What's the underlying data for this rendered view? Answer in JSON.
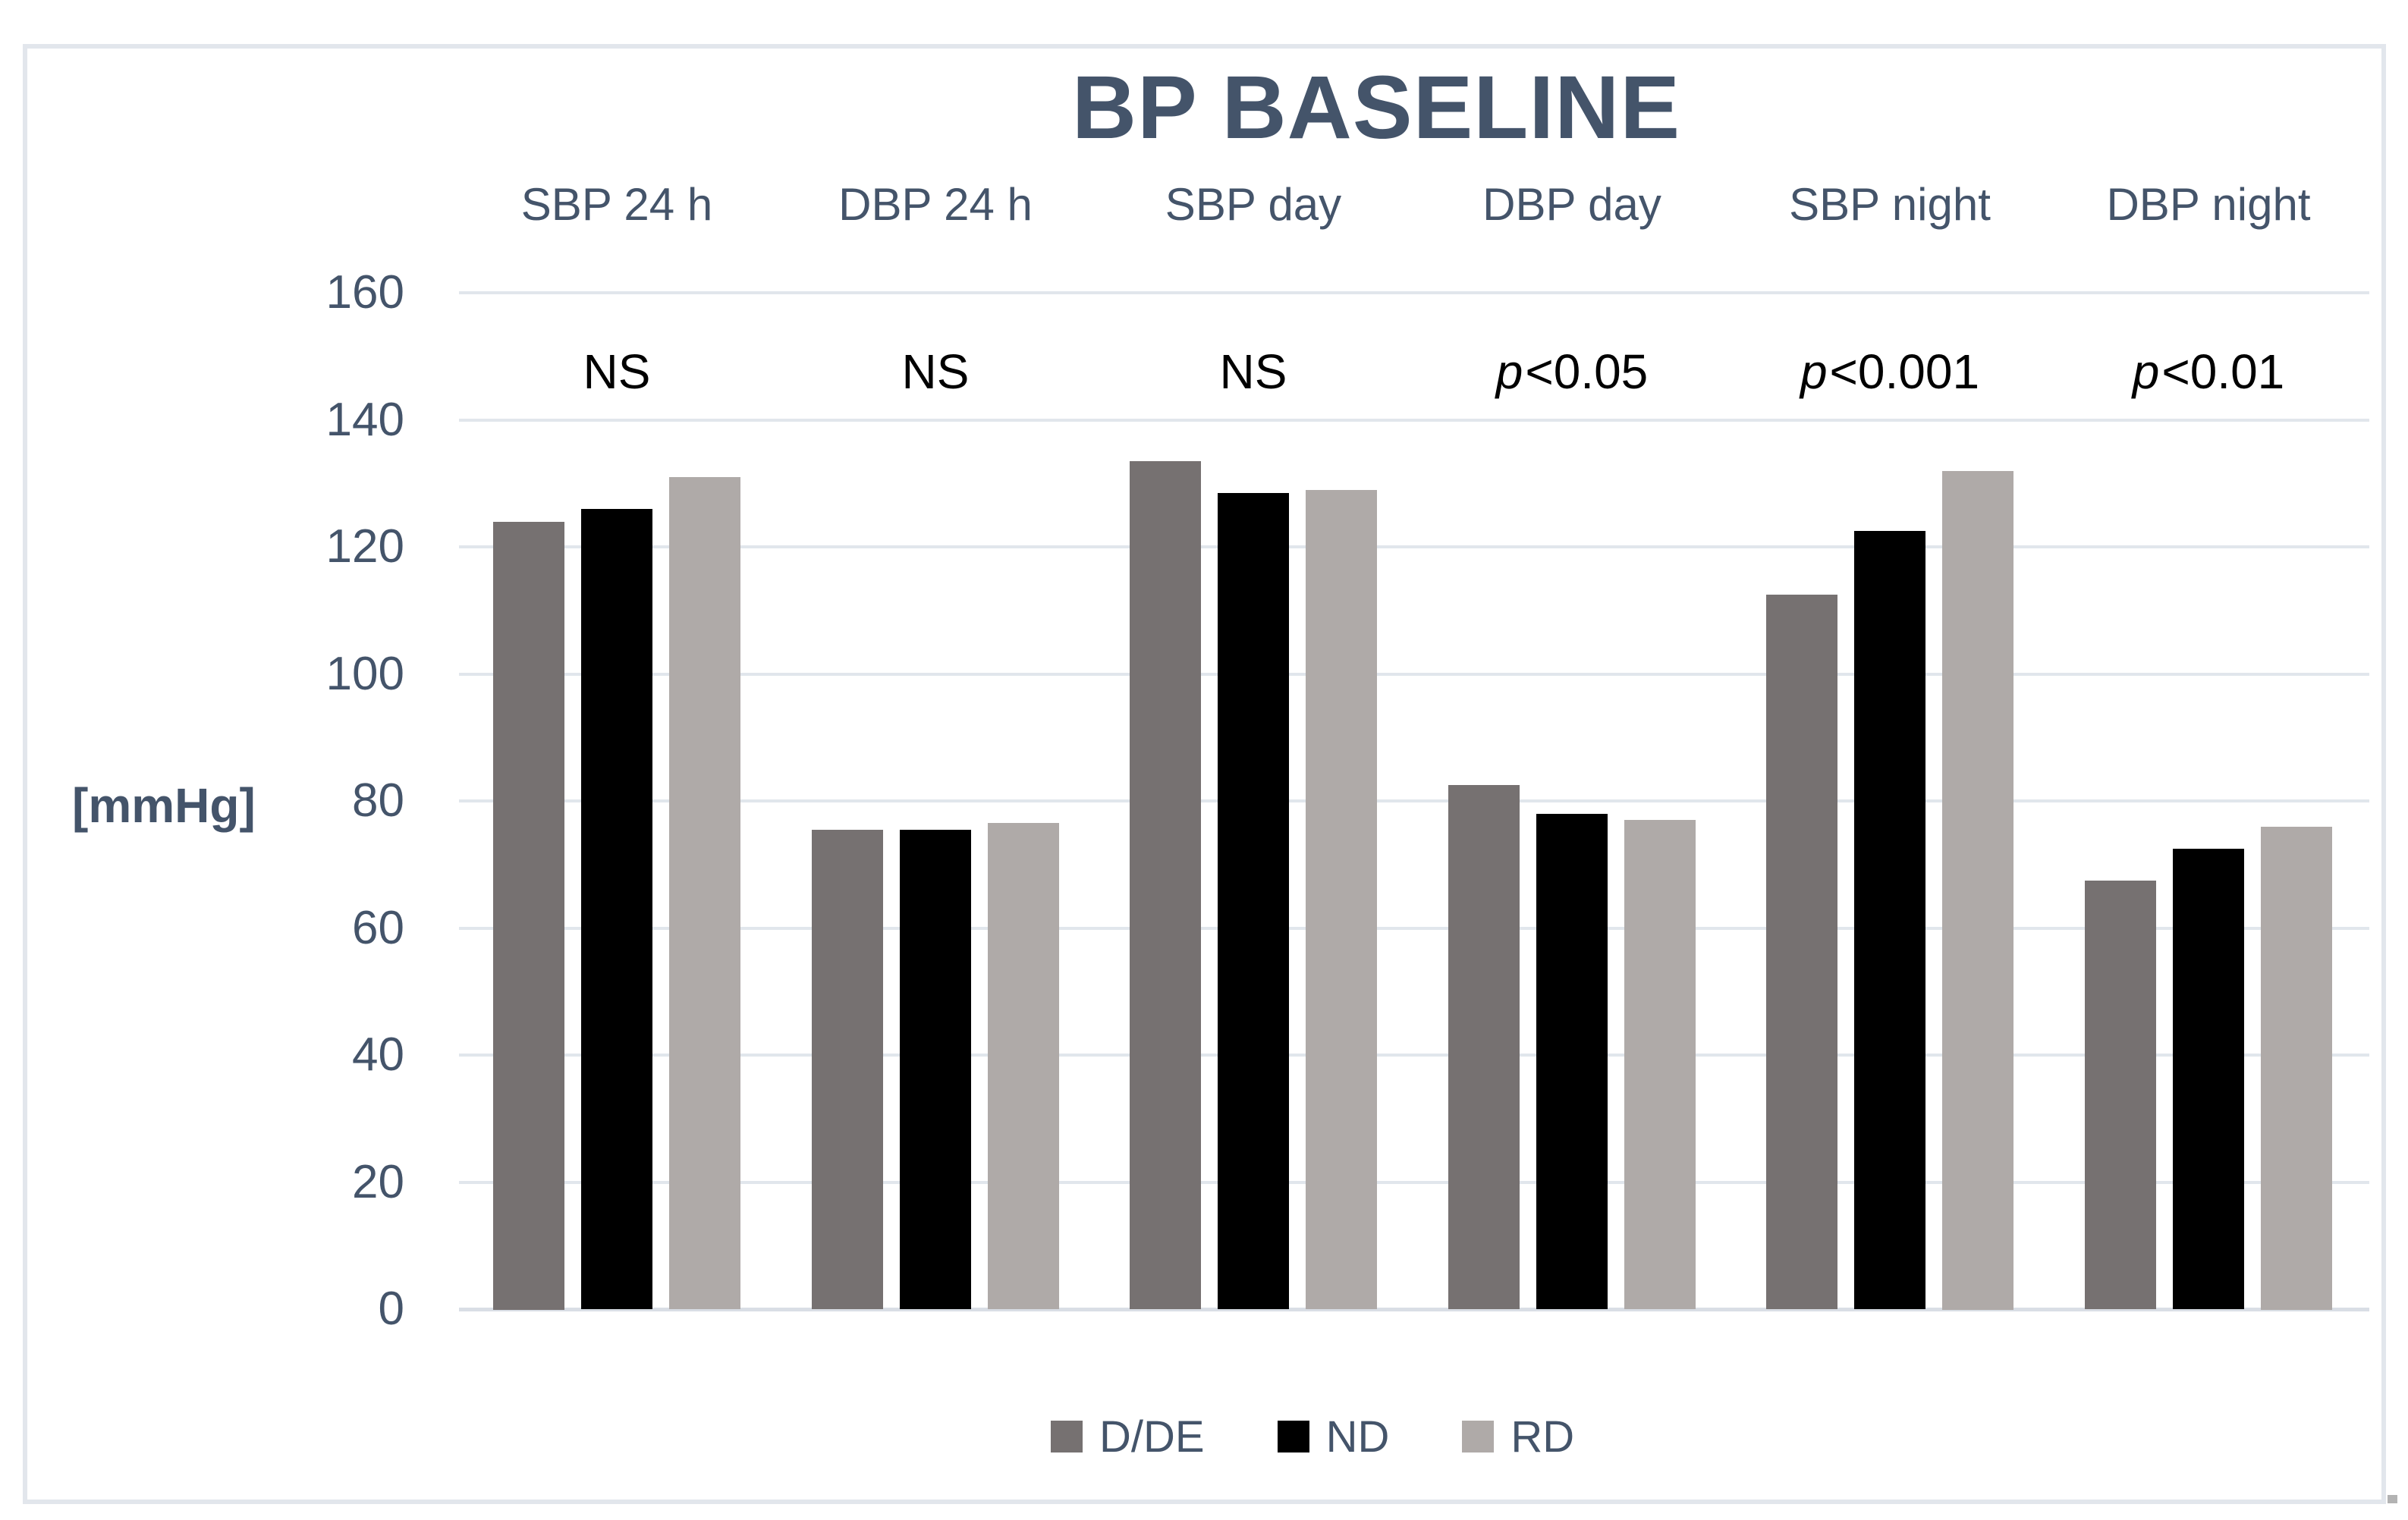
{
  "title": "BP BASELINE",
  "colors": {
    "text": "#44546A",
    "annotation": "#000000",
    "gridline": "#E1E6EC",
    "axis_line": "#D9DEE5",
    "frame": "#E2E6EC",
    "background": "#FFFFFF"
  },
  "chart_data": {
    "type": "bar",
    "title": "BP BASELINE",
    "xlabel": "",
    "ylabel": "[mmHg]",
    "ylim": [
      0,
      160
    ],
    "ytick_step": 20,
    "grid": true,
    "legend_position": "bottom",
    "categories": [
      "SBP 24 h",
      "DBP 24 h",
      "SBP day",
      "DBP day",
      "SBP night",
      "DBP night"
    ],
    "annotations": [
      "NS",
      "NS",
      "NS",
      "p<0.05",
      "p<0.001",
      "p<0.01"
    ],
    "series": [
      {
        "name": "D/DE",
        "color": "#767171",
        "values": [
          124,
          75.5,
          133.5,
          82.5,
          112.5,
          67.5
        ]
      },
      {
        "name": "ND",
        "color": "#000000",
        "values": [
          126,
          75.5,
          128.5,
          78,
          122.5,
          72.5
        ]
      },
      {
        "name": "RD",
        "color": "#AFAAA8",
        "values": [
          131,
          76.5,
          129,
          77,
          132,
          76
        ]
      }
    ]
  }
}
